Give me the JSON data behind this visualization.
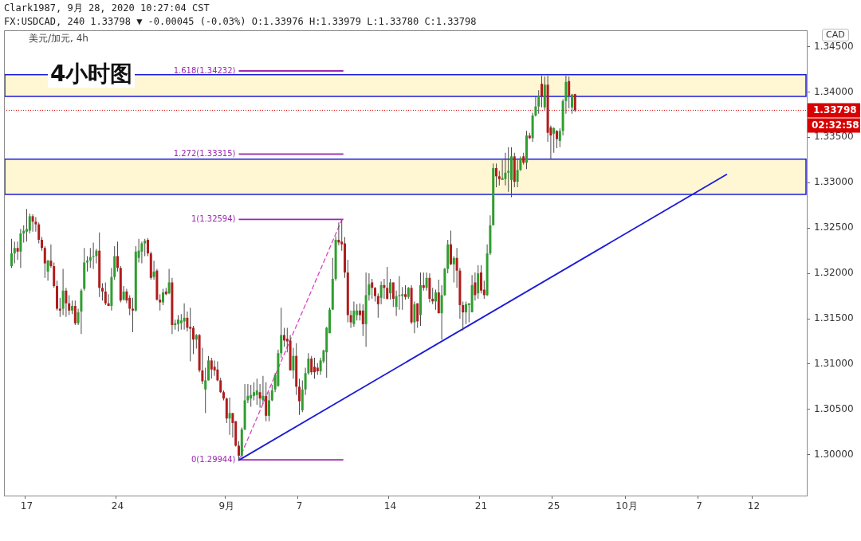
{
  "chart_data": {
    "type": "candlestick",
    "title": "4小时图",
    "ylabel": "CAD",
    "annotations": [
      "Clark1987, 9月 28, 2020 10:27:04 CST",
      "FX:USDCAD, 240 1.33798 ▼ -0.00045 (-0.03%) O:1.33976 H:1.33979 L:1.33780 C:1.33798",
      "美元/加元, 4h",
      "02:32:58"
    ],
    "categories": [
      null,
      null,
      null,
      null,
      null,
      null,
      null,
      "17",
      null,
      null,
      null,
      null,
      null,
      null,
      null,
      null,
      null,
      null,
      null,
      null,
      null,
      null,
      null,
      null,
      null,
      null,
      null,
      null,
      null,
      null,
      null,
      null,
      null,
      null,
      null,
      null,
      null,
      "24",
      null,
      null,
      null,
      null,
      null,
      null,
      null,
      null,
      null,
      null,
      null,
      null,
      null,
      null,
      null,
      null,
      null,
      null,
      null,
      null,
      null,
      null,
      null,
      null,
      null,
      null,
      null,
      null,
      null,
      null,
      null,
      null,
      null,
      null,
      null,
      "9月",
      null,
      null,
      null,
      null,
      null,
      null,
      null,
      null,
      null,
      null,
      null,
      null,
      null,
      null,
      null,
      null,
      null,
      null,
      null,
      null,
      null,
      null,
      null,
      "7",
      null,
      null,
      null,
      null,
      null,
      null,
      null,
      null,
      null,
      null,
      null,
      null,
      null,
      null,
      null,
      null,
      null,
      null,
      null,
      null,
      null,
      null,
      null,
      null,
      null,
      null,
      null,
      null,
      null,
      "14",
      null,
      null,
      null,
      null,
      null,
      null,
      null,
      null,
      null,
      null,
      null,
      null,
      null,
      null,
      null,
      null,
      null,
      null,
      null,
      null,
      null,
      null,
      null,
      null,
      null,
      null,
      null,
      null,
      null,
      "21",
      null,
      null,
      null,
      null,
      null,
      null,
      null,
      null,
      null,
      null,
      null,
      null,
      null,
      null,
      null,
      null,
      null,
      null,
      null,
      null,
      null,
      null,
      null,
      "25",
      null,
      null,
      null,
      null,
      null,
      null,
      null,
      null,
      null,
      null,
      null,
      null,
      null,
      null,
      null,
      null,
      null,
      null,
      null,
      null,
      null,
      null,
      null,
      "10月",
      null,
      null,
      null,
      null,
      null,
      null,
      null,
      null,
      null,
      null,
      null,
      null,
      null,
      null,
      null,
      null,
      null,
      null,
      null,
      null,
      null,
      null,
      null,
      "7",
      null,
      null,
      null,
      null,
      null,
      null,
      null,
      null,
      null,
      null,
      null,
      null,
      null,
      null,
      null,
      null,
      null,
      "12",
      null,
      null,
      null,
      null,
      null,
      null,
      null,
      null,
      null,
      null,
      null,
      null,
      null,
      null,
      null,
      null,
      null
    ],
    "ohlc": [
      null,
      null,
      [
        1.3208,
        1.3238,
        1.3206,
        1.3222
      ],
      [
        1.3222,
        1.3235,
        1.3211,
        1.3228
      ],
      [
        1.3228,
        1.3235,
        1.3215,
        1.3224
      ],
      [
        1.3224,
        1.3249,
        1.3206,
        1.3244
      ],
      [
        1.3244,
        1.3253,
        1.3234,
        1.3247
      ],
      [
        1.3246,
        1.3271,
        1.3235,
        1.3249
      ],
      [
        1.3247,
        1.3266,
        1.3244,
        1.3263
      ],
      [
        1.3263,
        1.3265,
        1.3246,
        1.3257
      ],
      [
        1.3257,
        1.3262,
        1.3246,
        1.3254
      ],
      [
        1.3254,
        1.3256,
        1.3233,
        1.3237
      ],
      [
        1.3237,
        1.324,
        1.3225,
        1.3228
      ],
      [
        1.3228,
        1.323,
        1.3195,
        1.3211
      ],
      [
        1.3202,
        1.3215,
        1.3192,
        1.3214
      ],
      [
        1.3214,
        1.3232,
        1.3206,
        1.3208
      ],
      [
        1.3208,
        1.3212,
        1.3184,
        1.3186
      ],
      [
        1.3186,
        1.3192,
        1.3159,
        1.3161
      ],
      [
        1.3161,
        1.3173,
        1.3152,
        1.3159
      ],
      [
        1.3161,
        1.3205,
        1.3154,
        1.3181
      ],
      [
        1.3181,
        1.3184,
        1.3152,
        1.3167
      ],
      [
        1.3167,
        1.3176,
        1.3154,
        1.3159
      ],
      [
        1.3159,
        1.317,
        1.3155,
        1.3164
      ],
      [
        1.3164,
        1.317,
        1.3143,
        1.3145
      ],
      [
        1.3145,
        1.3161,
        1.3143,
        1.3157
      ],
      [
        1.3158,
        1.3183,
        1.3133,
        1.3181
      ],
      [
        1.3183,
        1.3228,
        1.3181,
        1.3212
      ],
      [
        1.3212,
        1.3219,
        1.3202,
        1.3214
      ],
      [
        1.3214,
        1.3228,
        1.3206,
        1.3218
      ],
      [
        1.3218,
        1.3234,
        1.3205,
        1.3219
      ],
      [
        1.3219,
        1.3227,
        1.3211,
        1.3225
      ],
      [
        1.3225,
        1.3245,
        1.3174,
        1.3184
      ],
      [
        1.3184,
        1.3189,
        1.317,
        1.318
      ],
      [
        1.318,
        1.319,
        1.3165,
        1.3167
      ],
      [
        1.3167,
        1.3177,
        1.3164,
        1.3164
      ],
      [
        1.3164,
        1.3206,
        1.3159,
        1.3196
      ],
      [
        1.3196,
        1.323,
        1.3193,
        1.3219
      ],
      [
        1.3219,
        1.3235,
        1.3202,
        1.3206
      ],
      [
        1.3206,
        1.3208,
        1.3168,
        1.317
      ],
      [
        1.3171,
        1.3186,
        1.317,
        1.318
      ],
      [
        1.318,
        1.3183,
        1.3167,
        1.317
      ],
      [
        1.3173,
        1.3176,
        1.3154,
        1.3161
      ],
      [
        1.3161,
        1.3173,
        1.3135,
        1.3159
      ],
      [
        1.3159,
        1.323,
        1.3158,
        1.3224
      ],
      [
        1.3217,
        1.3238,
        1.3212,
        1.3225
      ],
      [
        1.3224,
        1.3235,
        1.3211,
        1.3233
      ],
      [
        1.3233,
        1.3238,
        1.3219,
        1.3236
      ],
      [
        1.3237,
        1.3239,
        1.3219,
        1.3222
      ],
      [
        1.3222,
        1.3224,
        1.3193,
        1.3195
      ],
      [
        1.3196,
        1.3214,
        1.3193,
        1.3202
      ],
      [
        1.3203,
        1.3205,
        1.317,
        1.3171
      ],
      [
        1.3171,
        1.3177,
        1.3159,
        1.3168
      ],
      [
        1.3168,
        1.3183,
        1.3165,
        1.3179
      ],
      [
        1.318,
        1.3184,
        1.3176,
        1.3177
      ],
      [
        1.3178,
        1.3205,
        1.3177,
        1.319
      ],
      [
        1.319,
        1.3195,
        1.3133,
        1.3143
      ],
      [
        1.3143,
        1.3149,
        1.3138,
        1.3145
      ],
      [
        1.3144,
        1.3154,
        1.3136,
        1.3149
      ],
      [
        1.3145,
        1.3155,
        1.3138,
        1.3148
      ],
      [
        1.3147,
        1.3167,
        1.3138,
        1.3151
      ],
      [
        1.3151,
        1.3158,
        1.3136,
        1.314
      ],
      [
        1.3141,
        1.3162,
        1.3103,
        1.3139
      ],
      [
        1.314,
        1.3142,
        1.3111,
        1.3127
      ],
      [
        1.3127,
        1.3133,
        1.3117,
        1.3132
      ],
      [
        1.3132,
        1.3133,
        1.3091,
        1.3093
      ],
      [
        1.3093,
        1.3118,
        1.3078,
        1.3081
      ],
      [
        1.3072,
        1.3096,
        1.3046,
        1.3082
      ],
      [
        1.3082,
        1.3109,
        1.3082,
        1.3104
      ],
      [
        1.3104,
        1.3107,
        1.3084,
        1.3094
      ],
      [
        1.3097,
        1.3104,
        1.3087,
        1.3093
      ],
      [
        1.3094,
        1.3103,
        1.3081,
        1.3082
      ],
      [
        1.3082,
        1.3085,
        1.3068,
        1.3069
      ],
      [
        1.3069,
        1.3071,
        1.306,
        1.3062
      ],
      [
        1.3062,
        1.3063,
        1.3035,
        1.304
      ],
      [
        1.304,
        1.3063,
        1.3022,
        1.3046
      ],
      [
        1.3046,
        1.3046,
        1.3019,
        1.3035
      ],
      [
        1.3037,
        1.3037,
        1.3009,
        1.301
      ],
      [
        1.301,
        1.3015,
        1.2994,
        1.2999
      ],
      [
        1.2999,
        1.303,
        1.2997,
        1.3028
      ],
      [
        1.3028,
        1.3078,
        1.3027,
        1.306
      ],
      [
        1.306,
        1.3078,
        1.3057,
        1.3065
      ],
      [
        1.3062,
        1.3077,
        1.3053,
        1.3066
      ],
      [
        1.3065,
        1.308,
        1.306,
        1.3069
      ],
      [
        1.3066,
        1.3084,
        1.3055,
        1.3071
      ],
      [
        1.3069,
        1.3078,
        1.3052,
        1.3062
      ],
      [
        1.306,
        1.3087,
        1.3056,
        1.3065
      ],
      [
        1.3065,
        1.308,
        1.3037,
        1.3043
      ],
      [
        1.3043,
        1.3069,
        1.3037,
        1.306
      ],
      [
        1.306,
        1.3077,
        1.3059,
        1.3071
      ],
      [
        1.3072,
        1.309,
        1.3069,
        1.3088
      ],
      [
        1.3076,
        1.3116,
        1.3075,
        1.3112
      ],
      [
        1.3112,
        1.3162,
        1.3107,
        1.3132
      ],
      [
        1.3132,
        1.314,
        1.3119,
        1.3126
      ],
      [
        1.3128,
        1.314,
        1.3113,
        1.3125
      ],
      [
        1.3126,
        1.3132,
        1.3093,
        1.3093
      ],
      [
        1.3093,
        1.3118,
        1.3084,
        1.3109
      ],
      [
        1.3109,
        1.3123,
        1.3066,
        1.3075
      ],
      [
        1.3075,
        1.3084,
        1.3044,
        1.3059
      ],
      [
        1.3049,
        1.3082,
        1.3047,
        1.3072
      ],
      [
        1.3072,
        1.3096,
        1.3066,
        1.309
      ],
      [
        1.309,
        1.3112,
        1.3088,
        1.3106
      ],
      [
        1.3106,
        1.3109,
        1.3088,
        1.3091
      ],
      [
        1.3097,
        1.3107,
        1.3084,
        1.3091
      ],
      [
        1.3096,
        1.3101,
        1.3088,
        1.3092
      ],
      [
        1.3092,
        1.3107,
        1.3088,
        1.3104
      ],
      [
        1.3103,
        1.3116,
        1.3101,
        1.3115
      ],
      [
        1.3113,
        1.3141,
        1.3085,
        1.314
      ],
      [
        1.3134,
        1.3162,
        1.3134,
        1.316
      ],
      [
        1.316,
        1.3217,
        1.316,
        1.3194
      ],
      [
        1.3194,
        1.3241,
        1.3192,
        1.3237
      ],
      [
        1.3237,
        1.3256,
        1.3231,
        1.3234
      ],
      [
        1.3235,
        1.3259,
        1.3225,
        1.3232
      ],
      [
        1.3233,
        1.324,
        1.3195,
        1.3201
      ],
      [
        1.3201,
        1.3215,
        1.3146,
        1.3154
      ],
      [
        1.3154,
        1.3159,
        1.314,
        1.3146
      ],
      [
        1.3144,
        1.3169,
        1.3141,
        1.3159
      ],
      [
        1.3154,
        1.3166,
        1.3148,
        1.3159
      ],
      [
        1.3159,
        1.3167,
        1.3148,
        1.3154
      ],
      [
        1.3159,
        1.3166,
        1.3131,
        1.3144
      ],
      [
        1.3144,
        1.3201,
        1.3119,
        1.3176
      ],
      [
        1.3176,
        1.32,
        1.317,
        1.3188
      ],
      [
        1.319,
        1.3194,
        1.3172,
        1.3184
      ],
      [
        1.3184,
        1.3185,
        1.3169,
        1.3175
      ],
      [
        1.3175,
        1.3178,
        1.3151,
        1.3166
      ],
      [
        1.3173,
        1.3191,
        1.3166,
        1.3187
      ],
      [
        1.3187,
        1.3194,
        1.3172,
        1.3184
      ],
      [
        1.3184,
        1.3207,
        1.3171,
        1.3172
      ],
      [
        1.3178,
        1.3194,
        1.3171,
        1.319
      ],
      [
        1.319,
        1.319,
        1.3163,
        1.3172
      ],
      [
        1.3163,
        1.3181,
        1.3153,
        1.3175
      ],
      [
        1.3175,
        1.3197,
        1.316,
        1.3176
      ],
      [
        1.3175,
        1.3185,
        1.316,
        1.3177
      ],
      [
        1.3177,
        1.3187,
        1.3171,
        1.3174
      ],
      [
        1.3174,
        1.3185,
        1.3172,
        1.3184
      ],
      [
        1.3184,
        1.3187,
        1.3144,
        1.3146
      ],
      [
        1.3146,
        1.3169,
        1.3134,
        1.3166
      ],
      [
        1.3167,
        1.3167,
        1.314,
        1.3147
      ],
      [
        1.3154,
        1.3201,
        1.3142,
        1.3187
      ],
      [
        1.3187,
        1.3201,
        1.3181,
        1.3184
      ],
      [
        1.3184,
        1.3201,
        1.3181,
        1.3195
      ],
      [
        1.3195,
        1.32,
        1.3168,
        1.3172
      ],
      [
        1.3172,
        1.3184,
        1.3166,
        1.3169
      ],
      [
        1.3169,
        1.3182,
        1.316,
        1.3179
      ],
      [
        1.3179,
        1.3193,
        1.3156,
        1.3156
      ],
      [
        1.3156,
        1.3187,
        1.3127,
        1.3176
      ],
      [
        1.3176,
        1.3206,
        1.3175,
        1.3205
      ],
      [
        1.3205,
        1.3237,
        1.32,
        1.3232
      ],
      [
        1.3232,
        1.3247,
        1.3209,
        1.321
      ],
      [
        1.321,
        1.3219,
        1.319,
        1.3217
      ],
      [
        1.3217,
        1.3228,
        1.3184,
        1.3203
      ],
      [
        1.3203,
        1.3206,
        1.315,
        1.3165
      ],
      [
        1.3165,
        1.3169,
        1.3137,
        1.3157
      ],
      [
        1.3157,
        1.3169,
        1.3144,
        1.3166
      ],
      [
        1.3165,
        1.3167,
        1.3146,
        1.3167
      ],
      [
        1.3157,
        1.3198,
        1.3157,
        1.3187
      ],
      [
        1.319,
        1.3201,
        1.317,
        1.3176
      ],
      [
        1.3178,
        1.3209,
        1.3172,
        1.32
      ],
      [
        1.3201,
        1.3209,
        1.3178,
        1.3181
      ],
      [
        1.3182,
        1.3192,
        1.3172,
        1.3176
      ],
      [
        1.3176,
        1.3232,
        1.3175,
        1.3222
      ],
      [
        1.3222,
        1.3264,
        1.322,
        1.3253
      ],
      [
        1.3253,
        1.3321,
        1.3253,
        1.3316
      ],
      [
        1.3316,
        1.3321,
        1.3295,
        1.3307
      ],
      [
        1.3307,
        1.3313,
        1.3297,
        1.3304
      ],
      [
        1.3303,
        1.3325,
        1.3303,
        1.3305
      ],
      [
        1.3304,
        1.3333,
        1.3297,
        1.3311
      ],
      [
        1.3311,
        1.3339,
        1.329,
        1.3313
      ],
      [
        1.3303,
        1.3339,
        1.3284,
        1.3329
      ],
      [
        1.3329,
        1.3333,
        1.3295,
        1.3301
      ],
      [
        1.3301,
        1.3325,
        1.3295,
        1.3314
      ],
      [
        1.3314,
        1.3329,
        1.3313,
        1.3327
      ],
      [
        1.3329,
        1.3333,
        1.332,
        1.3322
      ],
      [
        1.3322,
        1.3357,
        1.3315,
        1.3352
      ],
      [
        1.3352,
        1.3355,
        1.3348,
        1.3349
      ],
      [
        1.3349,
        1.3377,
        1.3345,
        1.3374
      ],
      [
        1.3374,
        1.3395,
        1.3373,
        1.3384
      ],
      [
        1.3384,
        1.3402,
        1.3376,
        1.3396
      ],
      [
        1.3409,
        1.3418,
        1.3383,
        1.3395
      ],
      [
        1.3383,
        1.3417,
        1.338,
        1.3408
      ],
      [
        1.3408,
        1.3418,
        1.3345,
        1.3355
      ],
      [
        1.3361,
        1.3363,
        1.3326,
        1.3352
      ],
      [
        1.3354,
        1.3361,
        1.3333,
        1.336
      ],
      [
        1.3357,
        1.3358,
        1.3338,
        1.3348
      ],
      [
        1.3346,
        1.336,
        1.3339,
        1.3357
      ],
      [
        1.3357,
        1.3392,
        1.3352,
        1.339
      ],
      [
        1.339,
        1.3418,
        1.3376,
        1.3411
      ],
      [
        1.3412,
        1.3417,
        1.3382,
        1.3396
      ],
      [
        1.3383,
        1.3398,
        1.3376,
        1.3397
      ],
      [
        1.33976,
        1.33979,
        1.3378,
        1.33798
      ],
      null,
      null,
      null,
      null,
      null,
      null,
      null,
      null,
      null,
      null,
      null,
      null,
      null,
      null,
      null,
      null,
      null,
      null,
      null,
      null,
      null,
      null,
      null,
      null,
      null,
      null,
      null,
      null,
      null,
      null,
      null,
      null,
      null,
      null,
      null,
      null,
      null,
      null,
      null,
      null,
      null,
      null,
      null,
      null,
      null,
      null,
      null,
      null,
      null,
      null,
      null,
      null,
      null,
      null,
      null,
      null,
      null,
      null,
      null,
      null,
      null,
      null,
      null,
      null,
      null,
      null,
      null,
      null,
      null,
      null,
      null,
      null,
      null,
      null,
      null,
      null
    ],
    "series": [
      {
        "type": "line",
        "color": "#1c1cd9",
        "values": [
          null,
          null,
          null,
          null,
          null,
          null,
          null,
          null,
          null,
          null,
          null,
          null,
          null,
          null,
          null,
          null,
          null,
          null,
          null,
          null,
          null,
          null,
          null,
          null,
          null,
          null,
          null,
          null,
          null,
          null,
          null,
          null,
          null,
          null,
          null,
          null,
          null,
          null,
          null,
          null,
          null,
          null,
          null,
          null,
          null,
          null,
          null,
          null,
          null,
          null,
          null,
          null,
          null,
          null,
          null,
          null,
          null,
          null,
          null,
          null,
          null,
          null,
          null,
          null,
          null,
          null,
          null,
          null,
          null,
          null,
          null,
          null,
          null,
          null,
          null,
          null,
          null,
          1.2994,
          null,
          null,
          null,
          null,
          null,
          null,
          null,
          null,
          null,
          null,
          null,
          null,
          null,
          null,
          null,
          null,
          null,
          null,
          null,
          null,
          null,
          null,
          null,
          null,
          null,
          null,
          null,
          null,
          null,
          null,
          null,
          null,
          null,
          null,
          null,
          null,
          null,
          null,
          null,
          null,
          null,
          null,
          null,
          null,
          null,
          null,
          null,
          null,
          null,
          null,
          null,
          null,
          null,
          null,
          null,
          null,
          null,
          null,
          null,
          null,
          null,
          null,
          null,
          null,
          null,
          null,
          null,
          null,
          null,
          null,
          null,
          null,
          null,
          null,
          null,
          null,
          null,
          null,
          null,
          null,
          null,
          null,
          null,
          null,
          null,
          null,
          null,
          null,
          null,
          null,
          null,
          null,
          null,
          null,
          null,
          null,
          null,
          null,
          null,
          null,
          null,
          null,
          null,
          null,
          null,
          null,
          null,
          null,
          null,
          null,
          null,
          null,
          null,
          null,
          null,
          null,
          null,
          null,
          null,
          null,
          null,
          null,
          null,
          null,
          null,
          null,
          null,
          null,
          null,
          null,
          null,
          null,
          null,
          null,
          null,
          null,
          null,
          null,
          null,
          null,
          null,
          null,
          null,
          null,
          null,
          null,
          null,
          null,
          null,
          null,
          null,
          null,
          null,
          null,
          null,
          null,
          null,
          null,
          null,
          null,
          1.3309,
          null,
          null,
          null,
          null,
          null,
          null,
          null,
          null,
          null,
          null,
          null,
          null,
          null,
          null,
          null,
          null,
          null,
          null,
          null,
          null,
          null,
          null,
          null,
          null,
          null,
          null
        ]
      },
      {
        "type": "line",
        "color": "#e040c0",
        "line_style": "dashed",
        "values": [
          null,
          null,
          null,
          null,
          null,
          null,
          null,
          null,
          null,
          null,
          null,
          null,
          null,
          null,
          null,
          null,
          null,
          null,
          null,
          null,
          null,
          null,
          null,
          null,
          null,
          null,
          null,
          null,
          null,
          null,
          null,
          null,
          null,
          null,
          null,
          null,
          null,
          null,
          null,
          null,
          null,
          null,
          null,
          null,
          null,
          null,
          null,
          null,
          null,
          null,
          null,
          null,
          null,
          null,
          null,
          null,
          null,
          null,
          null,
          null,
          null,
          null,
          null,
          null,
          null,
          null,
          null,
          null,
          null,
          null,
          null,
          null,
          null,
          null,
          null,
          null,
          null,
          1.2994,
          null,
          null,
          null,
          null,
          null,
          null,
          null,
          null,
          null,
          null,
          null,
          null,
          null,
          null,
          null,
          null,
          null,
          null,
          null,
          null,
          null,
          null,
          null,
          null,
          null,
          null,
          null,
          null,
          null,
          null,
          null,
          null,
          null,
          1.3259,
          null,
          null,
          null,
          null,
          null,
          null,
          null,
          null,
          null,
          null,
          null,
          null,
          null,
          null,
          null,
          null,
          null,
          null,
          null,
          null,
          null,
          null,
          null,
          null,
          null,
          null,
          null,
          null,
          null,
          null,
          null,
          null,
          null,
          null,
          null,
          null,
          null,
          null,
          null,
          null,
          null,
          null,
          null,
          null,
          null,
          null,
          null,
          null,
          null,
          null,
          null,
          null,
          null,
          null,
          null,
          null,
          null,
          null,
          null,
          null,
          null,
          null,
          null,
          null,
          null,
          null,
          null,
          null,
          null,
          null,
          null,
          null,
          null,
          null,
          null,
          null,
          null,
          null,
          null,
          null,
          null,
          null,
          null,
          null,
          null,
          null,
          null,
          null,
          null,
          null,
          null,
          null,
          null,
          null,
          null,
          null,
          null,
          null,
          null,
          null,
          null,
          null,
          null,
          null,
          null,
          null,
          null,
          null,
          null,
          null,
          null,
          null,
          null,
          null,
          null,
          null,
          null,
          null,
          null,
          null,
          null,
          null,
          null,
          null,
          null,
          null,
          null,
          null,
          null,
          null,
          null,
          null,
          null,
          null,
          null,
          null,
          null,
          null,
          null,
          null,
          null,
          null,
          null,
          null,
          null,
          null,
          null,
          null,
          null,
          null,
          null,
          null,
          null
        ]
      }
    ],
    "marker": "none",
    "ylim": [
      1.2955,
      1.3468
    ],
    "yticks": [
      {
        "value": 1.3,
        "label": "1.30000"
      },
      {
        "value": 1.305,
        "label": "1.30500"
      },
      {
        "value": 1.31,
        "label": "1.31000"
      },
      {
        "value": 1.315,
        "label": "1.31500"
      },
      {
        "value": 1.32,
        "label": "1.32000"
      },
      {
        "value": 1.325,
        "label": "1.32500"
      },
      {
        "value": 1.33,
        "label": "1.33000"
      },
      {
        "value": 1.335,
        "label": "1.33500"
      },
      {
        "value": 1.34,
        "label": "1.34000"
      },
      {
        "value": 1.345,
        "label": "1.34500"
      }
    ],
    "bands": [
      {
        "axis": "y",
        "from": 1.3287,
        "to": 1.3326,
        "color": "#fff7d4"
      },
      {
        "axis": "y",
        "from": 1.3395,
        "to": 1.3419,
        "color": "#fff7d4"
      }
    ],
    "ref_lines": [
      {
        "axis": "y",
        "value": 1.34232,
        "label": "1.618(1.34232)",
        "color": "#9c27b0"
      },
      {
        "axis": "y",
        "value": 1.33315,
        "label": "1.272(1.33315)",
        "color": "#9c27b0"
      },
      {
        "axis": "y",
        "value": 1.32594,
        "label": "1(1.32594)",
        "color": "#9c27b0"
      },
      {
        "axis": "y",
        "value": 1.29944,
        "label": "0(1.29944)",
        "color": "#9c27b0"
      },
      {
        "axis": "y",
        "value": 1.33798,
        "label": "1.33798",
        "color": "#d80000",
        "line_style": "dotted"
      }
    ]
  }
}
